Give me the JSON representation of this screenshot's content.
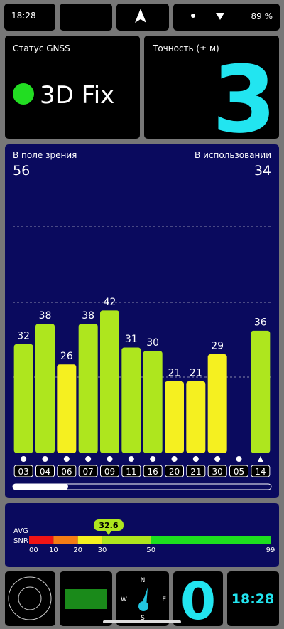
{
  "status_bar": {
    "time": "18:28",
    "battery": "89 %"
  },
  "gnss_status": {
    "title": "Статус GNSS",
    "fix": "3D Fix"
  },
  "accuracy": {
    "title": "Точность (± м)",
    "value": "3"
  },
  "satellites": {
    "in_view_label": "В поле зрения",
    "in_view": 56,
    "in_use_label": "В использовании",
    "in_use": 34,
    "ids": [
      "03",
      "04",
      "06",
      "07",
      "09",
      "11",
      "16",
      "20",
      "21",
      "30",
      "05",
      "14"
    ],
    "snr": [
      32,
      38,
      26,
      38,
      42,
      31,
      30,
      21,
      21,
      29,
      0,
      36
    ],
    "snr_labels": [
      "32",
      "38",
      "26",
      "38",
      "42",
      "31",
      "30",
      "21",
      "21",
      "29",
      null,
      "36"
    ]
  },
  "snr_scale": {
    "avg_label": "AVG",
    "label": "SNR",
    "avg": 32.6,
    "stops": [
      0,
      10,
      20,
      30,
      50,
      99
    ],
    "stop_labels": [
      "00",
      "10",
      "20",
      "30",
      "50",
      "99"
    ],
    "colors": [
      "#f01414",
      "#f57d14",
      "#f5f020",
      "#aee61e",
      "#1ee01e"
    ]
  },
  "compass": {
    "n": "N",
    "e": "E",
    "s": "S",
    "w": "W"
  },
  "speed": "0",
  "clock": "18:28"
}
